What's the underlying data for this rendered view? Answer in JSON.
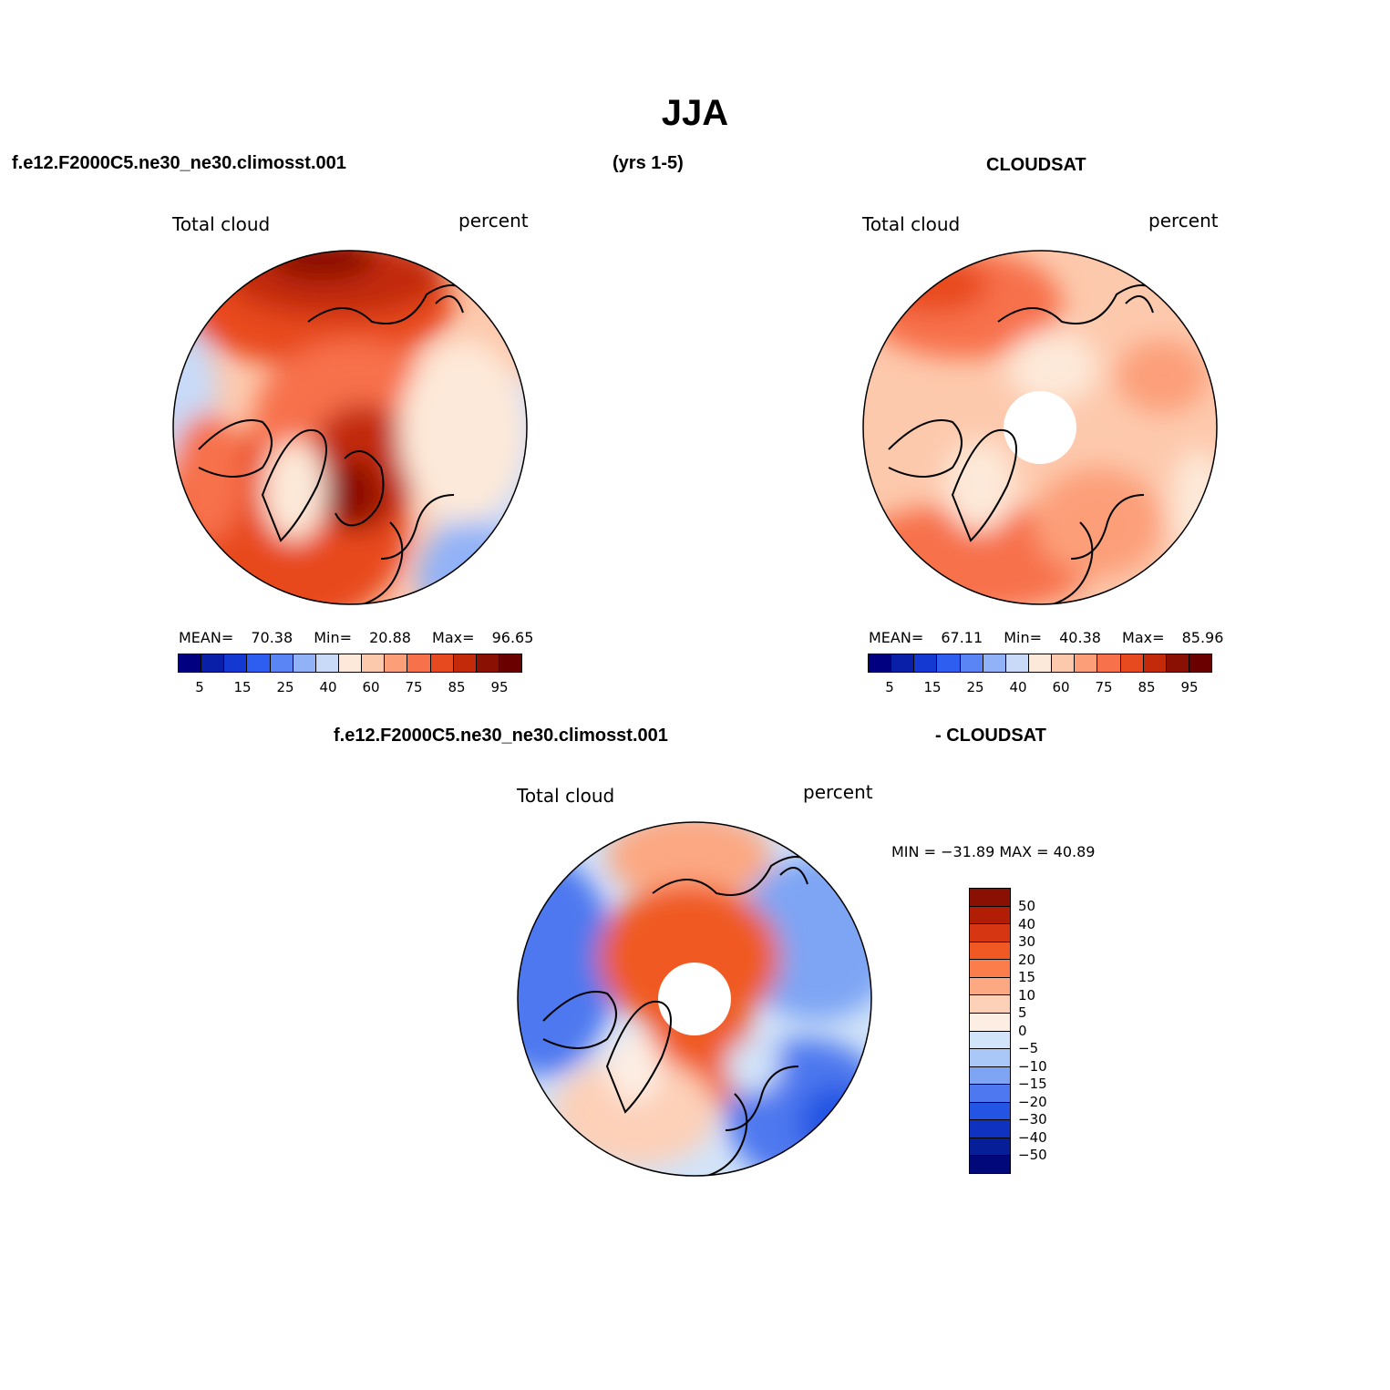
{
  "title": "JJA",
  "header": {
    "model": "f.e12.F2000C5.ne30_ne30.climosst.001",
    "years": "(yrs 1-5)",
    "obs": "CLOUDSAT"
  },
  "diff_header": {
    "model": "f.e12.F2000C5.ne30_ne30.climosst.001",
    "obs": "- CLOUDSAT"
  },
  "panels": [
    {
      "id": "model",
      "variable": "Total cloud",
      "units": "percent",
      "stats": {
        "mean_label": "MEAN=",
        "mean": "70.38",
        "min_label": "Min=",
        "min": "20.88",
        "max_label": "Max=",
        "max": "96.65"
      },
      "colorbar_ticks": [
        "5",
        "15",
        "25",
        "40",
        "60",
        "75",
        "85",
        "95"
      ]
    },
    {
      "id": "obs",
      "variable": "Total cloud",
      "units": "percent",
      "stats": {
        "mean_label": "MEAN=",
        "mean": "67.11",
        "min_label": "Min=",
        "min": "40.38",
        "max_label": "Max=",
        "max": "85.96"
      },
      "colorbar_ticks": [
        "5",
        "15",
        "25",
        "40",
        "60",
        "75",
        "85",
        "95"
      ]
    },
    {
      "id": "diff",
      "variable": "Total cloud",
      "units": "percent",
      "minmax": "MIN = −31.89  MAX =  40.89",
      "colorbar_ticks": [
        "50",
        "40",
        "30",
        "20",
        "15",
        "10",
        "5",
        "0",
        "−5",
        "−10",
        "−15",
        "−20",
        "−30",
        "−40",
        "−50"
      ]
    }
  ],
  "colors": {
    "abs_scale": [
      "#000080",
      "#0a1fa8",
      "#1438d2",
      "#2e5ef0",
      "#5a86f5",
      "#92b2f7",
      "#c8daf8",
      "#fde9d9",
      "#fdc9ad",
      "#fc9f79",
      "#f7714b",
      "#e84a1f",
      "#c22a0a",
      "#8b1004",
      "#6a0000"
    ],
    "diff_scale_top_to_bottom": [
      "#8b1004",
      "#b21d06",
      "#d63611",
      "#f05a22",
      "#fa7d4b",
      "#fca882",
      "#fdd0b8",
      "#fdeee4",
      "#d2e4f9",
      "#aac8f7",
      "#7ea5f4",
      "#4e78ef",
      "#2354e3",
      "#0f33c0",
      "#071e99",
      "#00087a"
    ]
  }
}
